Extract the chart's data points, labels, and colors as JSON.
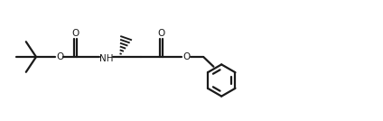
{
  "bg_color": "#ffffff",
  "line_color": "#1a1a1a",
  "line_width": 1.6,
  "figsize": [
    4.24,
    1.34
  ],
  "dpi": 100,
  "xlim": [
    0,
    10.6
  ],
  "ylim": [
    0,
    2.5
  ]
}
